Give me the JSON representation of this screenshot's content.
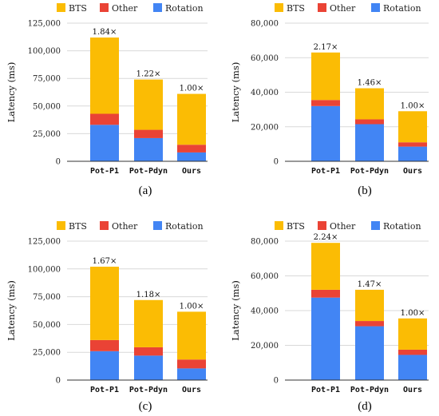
{
  "colors": {
    "BTS": "#fbbc04",
    "Other": "#ea4335",
    "Rotation": "#4285f4"
  },
  "chart_data": [
    {
      "type": "bar",
      "stacked": true,
      "panel_label": "(a)",
      "ylabel": "Latency (ms)",
      "legend": [
        "BTS",
        "Other",
        "Rotation"
      ],
      "legend_position": "top",
      "categories": [
        "Pot-P1",
        "Pot-Pdyn",
        "Ours"
      ],
      "series": [
        {
          "name": "Rotation",
          "values": [
            33000,
            21000,
            8000
          ]
        },
        {
          "name": "Other",
          "values": [
            10000,
            7500,
            7000
          ]
        },
        {
          "name": "BTS",
          "values": [
            69000,
            45500,
            46000
          ]
        }
      ],
      "bar_labels": [
        "1.84×",
        "1.22×",
        "1.00×"
      ],
      "yticks": [
        0,
        25000,
        50000,
        75000,
        100000,
        125000
      ],
      "ytick_labels": [
        "0",
        "25,000",
        "50,000",
        "75,000",
        "100,000",
        "125,000"
      ],
      "ylim": [
        0,
        125000
      ],
      "grid": true
    },
    {
      "type": "bar",
      "stacked": true,
      "panel_label": "(b)",
      "ylabel": "Latency (ms)",
      "legend": [
        "BTS",
        "Other",
        "Rotation"
      ],
      "legend_position": "top",
      "categories": [
        "Pot-P1",
        "Pot-Pdyn",
        "Ours"
      ],
      "series": [
        {
          "name": "Rotation",
          "values": [
            32000,
            21500,
            8500
          ]
        },
        {
          "name": "Other",
          "values": [
            3500,
            2800,
            2500
          ]
        },
        {
          "name": "BTS",
          "values": [
            27500,
            18000,
            18000
          ]
        }
      ],
      "bar_labels": [
        "2.17×",
        "1.46×",
        "1.00×"
      ],
      "yticks": [
        0,
        20000,
        40000,
        60000,
        80000
      ],
      "ytick_labels": [
        "0",
        "20,000",
        "40,000",
        "60,000",
        "80,000"
      ],
      "ylim": [
        0,
        80000
      ],
      "grid": true
    },
    {
      "type": "bar",
      "stacked": true,
      "panel_label": "(c)",
      "ylabel": "Latency (ms)",
      "legend": [
        "BTS",
        "Other",
        "Rotation"
      ],
      "legend_position": "top",
      "categories": [
        "Pot-P1",
        "Pot-Pdyn",
        "Ours"
      ],
      "series": [
        {
          "name": "Rotation",
          "values": [
            26000,
            22000,
            10500
          ]
        },
        {
          "name": "Other",
          "values": [
            10000,
            7500,
            8000
          ]
        },
        {
          "name": "BTS",
          "values": [
            66000,
            42500,
            43000
          ]
        }
      ],
      "bar_labels": [
        "1.67×",
        "1.18×",
        "1.00×"
      ],
      "yticks": [
        0,
        25000,
        50000,
        75000,
        100000,
        125000
      ],
      "ytick_labels": [
        "0",
        "25,000",
        "50,000",
        "75,000",
        "100,000",
        "125,000"
      ],
      "ylim": [
        0,
        125000
      ],
      "grid": true
    },
    {
      "type": "bar",
      "stacked": true,
      "panel_label": "(d)",
      "ylabel": "Latency (ms)",
      "legend": [
        "BTS",
        "Other",
        "Rotation"
      ],
      "legend_position": "top",
      "categories": [
        "Pot-P1",
        "Pot-Pdyn",
        "Ours"
      ],
      "series": [
        {
          "name": "Rotation",
          "values": [
            47500,
            31000,
            14500
          ]
        },
        {
          "name": "Other",
          "values": [
            4500,
            3000,
            3000
          ]
        },
        {
          "name": "BTS",
          "values": [
            27000,
            18000,
            18000
          ]
        }
      ],
      "bar_labels": [
        "2.24×",
        "1.47×",
        "1.00×"
      ],
      "yticks": [
        0,
        20000,
        40000,
        60000,
        80000
      ],
      "ytick_labels": [
        "0",
        "20,000",
        "40,000",
        "60,000",
        "80,000"
      ],
      "ylim": [
        0,
        80000
      ],
      "grid": true
    }
  ]
}
